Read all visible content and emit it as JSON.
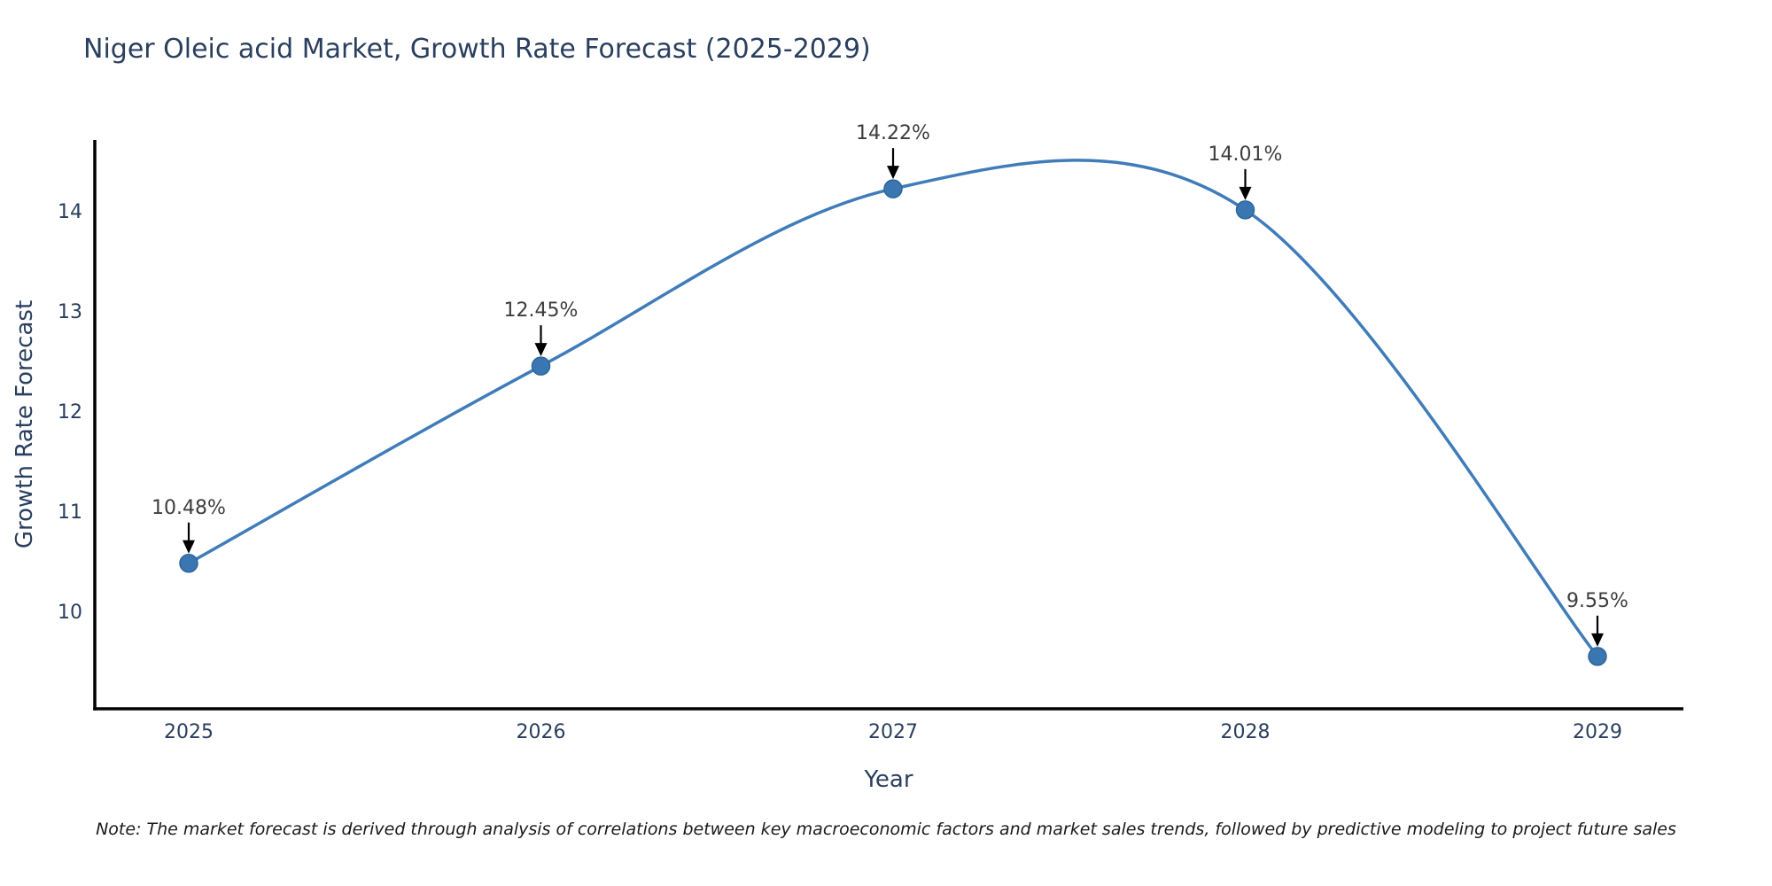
{
  "note": "Note: The market forecast is derived through analysis of correlations between key macroeconomic factors and market sales trends, followed by predictive modeling to project future sales",
  "colors": {
    "line": "#3f7cb9",
    "marker_fill": "#3a76b2",
    "marker_edge": "#2f6699",
    "axis": "#000000",
    "axis_text": "#2a3f5f",
    "annotation_text": "#3d3d3d",
    "annotation_arrow": "#000000",
    "title_text": "#2a3f5f",
    "background": "#ffffff"
  },
  "chart_data": {
    "type": "line",
    "title": "Niger Oleic acid Market, Growth Rate Forecast (2025-2029)",
    "xlabel": "Year",
    "ylabel": "Growth Rate Forecast",
    "categories": [
      "2025",
      "2026",
      "2027",
      "2028",
      "2029"
    ],
    "values": [
      10.48,
      12.45,
      14.22,
      14.01,
      9.55
    ],
    "point_labels": [
      "10.48%",
      "12.45%",
      "14.22%",
      "14.01%",
      "9.55%"
    ],
    "yticks": [
      "10",
      "11",
      "12",
      "13",
      "14"
    ],
    "ytick_values": [
      10,
      11,
      12,
      13,
      14
    ],
    "ylim": [
      9.03,
      14.69
    ],
    "grid": false,
    "legend_position": "none",
    "line_shape": "spline",
    "markers": true
  }
}
